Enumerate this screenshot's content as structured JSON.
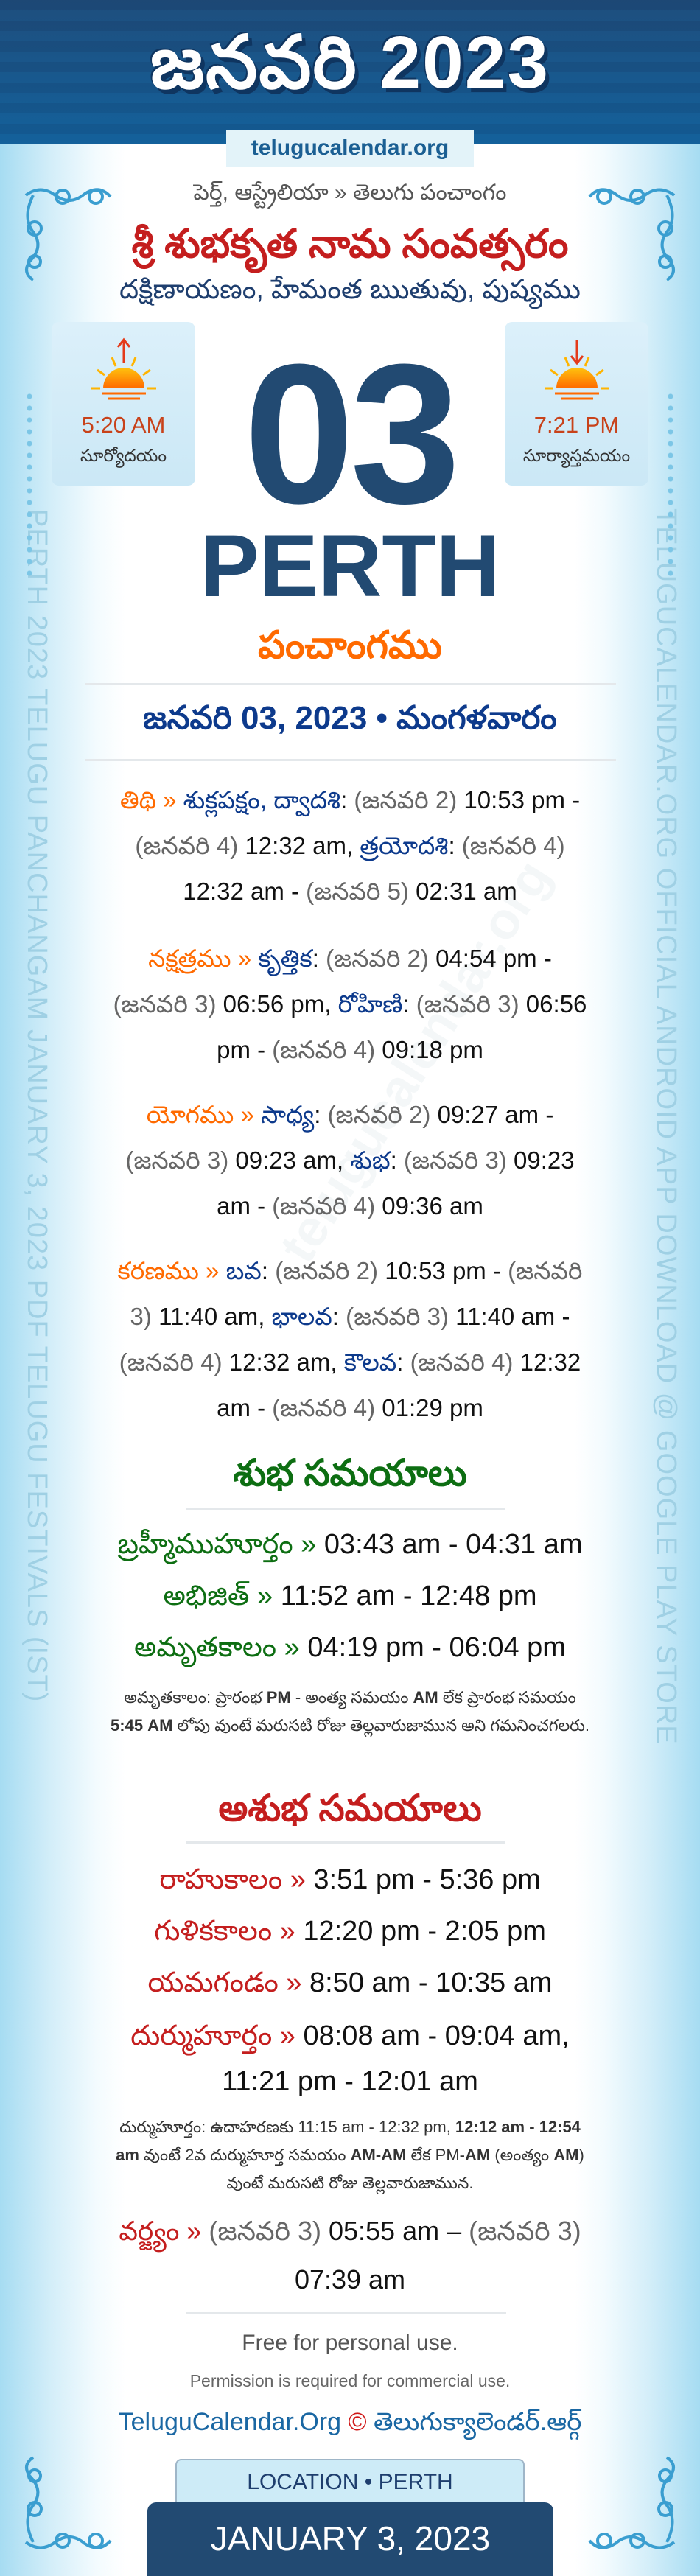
{
  "header": {
    "title": "జనవరి 2023",
    "site": "telugucalendar.org"
  },
  "top": {
    "subtitle": "పెర్త్, ఆస్ట్రేలియా » తెలుగు పంచాంగం",
    "year_name": "శ్రీ శుభకృత నామ సంవత్సరం",
    "season": "దక్షిణాయణం, హేమంత ఋతువు, పుష్యము"
  },
  "sunrise": {
    "time": "5:20 AM",
    "label": "సూర్యోదయం",
    "icon": "sunrise-icon"
  },
  "sunset": {
    "time": "7:21 PM",
    "label": "సూర్యాస్తమయం",
    "icon": "sunset-icon"
  },
  "day": "03",
  "city": "PERTH",
  "panchang_title": "పంచాంగము",
  "date_line": "జనవరి 03, 2023 • మంగళవారం",
  "panchang": [
    {
      "label": "తిథి",
      "segments": [
        [
          "»",
          "label"
        ],
        [
          "శుక్లపక్షం, ద్వాదశి",
          "name"
        ],
        [
          ":",
          "time"
        ],
        [
          "(జనవరి 2)",
          "date"
        ],
        [
          "10:53 pm -",
          "time"
        ],
        [
          "(జనవరి 4)",
          "date"
        ],
        [
          "12:32 am,",
          "time"
        ],
        [
          "త్రయోదశి",
          "name"
        ],
        [
          ":",
          "time"
        ],
        [
          "(జనవరి 4)",
          "date"
        ],
        [
          "12:32 am -",
          "time"
        ],
        [
          "(జనవరి 5)",
          "date"
        ],
        [
          "02:31 am",
          "time"
        ]
      ]
    },
    {
      "label": "నక్షత్రము",
      "segments": [
        [
          "»",
          "label"
        ],
        [
          "కృత్తిక",
          "name"
        ],
        [
          ":",
          "time"
        ],
        [
          "(జనవరి 2)",
          "date"
        ],
        [
          "04:54 pm -",
          "time"
        ],
        [
          "(జనవరి 3)",
          "date"
        ],
        [
          "06:56 pm,",
          "time"
        ],
        [
          "రోహిణి",
          "name"
        ],
        [
          ":",
          "time"
        ],
        [
          "(జనవరి 3)",
          "date"
        ],
        [
          "06:56 pm -",
          "time"
        ],
        [
          "(జనవరి 4)",
          "date"
        ],
        [
          "09:18 pm",
          "time"
        ]
      ]
    },
    {
      "label": "యోగము",
      "segments": [
        [
          "»",
          "label"
        ],
        [
          "సాధ్య",
          "name"
        ],
        [
          ":",
          "time"
        ],
        [
          "(జనవరి 2)",
          "date"
        ],
        [
          "09:27 am -",
          "time"
        ],
        [
          "(జనవరి 3)",
          "date"
        ],
        [
          "09:23 am,",
          "time"
        ],
        [
          "శుభ",
          "name"
        ],
        [
          ":",
          "time"
        ],
        [
          "(జనవరి 3)",
          "date"
        ],
        [
          "09:23 am -",
          "time"
        ],
        [
          "(జనవరి 4)",
          "date"
        ],
        [
          "09:36 am",
          "time"
        ]
      ]
    },
    {
      "label": "కరణము",
      "segments": [
        [
          "»",
          "label"
        ],
        [
          "బవ",
          "name"
        ],
        [
          ":",
          "time"
        ],
        [
          "(జనవరి 2)",
          "date"
        ],
        [
          "10:53 pm -",
          "time"
        ],
        [
          "(జనవరి 3)",
          "date"
        ],
        [
          "11:40 am,",
          "time"
        ],
        [
          "భాలవ",
          "name"
        ],
        [
          ":",
          "time"
        ],
        [
          "(జనవరి 3)",
          "date"
        ],
        [
          "11:40 am -",
          "time"
        ],
        [
          "(జనవరి 4)",
          "date"
        ],
        [
          "12:32 am,",
          "time"
        ],
        [
          "కౌలవ",
          "name"
        ],
        [
          ":",
          "time"
        ],
        [
          "(జనవరి 4)",
          "date"
        ],
        [
          "12:32 am -",
          "time"
        ],
        [
          "(జనవరి 4)",
          "date"
        ],
        [
          "01:29 pm",
          "time"
        ]
      ]
    }
  ],
  "good_times": {
    "title": "శుభ సమయాలు",
    "items": [
      {
        "label": "బ్రహ్మీముహూర్తం »",
        "time": "03:43 am - 04:31 am"
      },
      {
        "label": "అభిజిత్ »",
        "time": "11:52 am - 12:48 pm"
      },
      {
        "label": "అమృతకాలం »",
        "time": "04:19 pm - 06:04 pm"
      }
    ],
    "note": [
      "అమృతకాలం: ప్రారంభ ",
      "PM",
      " - అంత్య సమయం ",
      "AM",
      " లేక ప్రారంభ సమయం ",
      "5:45 AM",
      " లోపు వుంటే మరుసటి రోజు తెల్లవారుజామున అని గమనించగలరు."
    ]
  },
  "bad_times": {
    "title": "అశుభ సమయాలు",
    "items": [
      {
        "label": "రాహుకాలం »",
        "time": "3:51 pm - 5:36 pm"
      },
      {
        "label": "గుళికకాలం »",
        "time": "12:20 pm - 2:05 pm"
      },
      {
        "label": "యమగండం »",
        "time": "8:50 am - 10:35 am"
      },
      {
        "label": "దుర్ముహూర్తం »",
        "time": "08:08 am - 09:04 am,",
        "time2": "11:21 pm - 12:01 am"
      }
    ],
    "note": [
      "దుర్ముహూర్తం: ఉదాహరణకు 11:15 am - 12:32 pm, ",
      "12:12 am - 12:54 am",
      " వుంటే 2వ దుర్ముహూర్త సమయం ",
      "AM-AM",
      " లేక PM-",
      "AM",
      " (అంత్యం ",
      "AM",
      ") వుంటే మరుసటి రోజు తెల్లవారుజామున."
    ],
    "varjyam": {
      "label": "వర్జ్యం »",
      "date1": "(జనవరి 3)",
      "time1": "05:55 am –",
      "date2": "(జనవరి 3)",
      "time2": "07:39 am"
    }
  },
  "footer": {
    "free": "Free for personal use.",
    "permission": "Permission is required for commercial use.",
    "brand_en": "TeluguCalendar.Org",
    "copyright": "©",
    "brand_te": "తెలుగుక్యాలెండర్.ఆర్గ్",
    "location": "LOCATION • PERTH",
    "date": "JANUARY 3, 2023"
  },
  "side_text": {
    "left": "PERTH 2023 TELUGU PANCHANGAM JANUARY 3, 2023 PDF TELUGU FESTIVALS (IST)",
    "right": "TELUGUCALENDAR.ORG OFFICIAL ANDROID APP DOWNLOAD @ GOOGLE PLAY STORE"
  },
  "watermark": "telugucalendar.org",
  "colors": {
    "navy": "#224a72",
    "orange": "#ff6a00",
    "red": "#c41e1e",
    "green": "#0d6e12",
    "blue": "#0d3a8c"
  }
}
